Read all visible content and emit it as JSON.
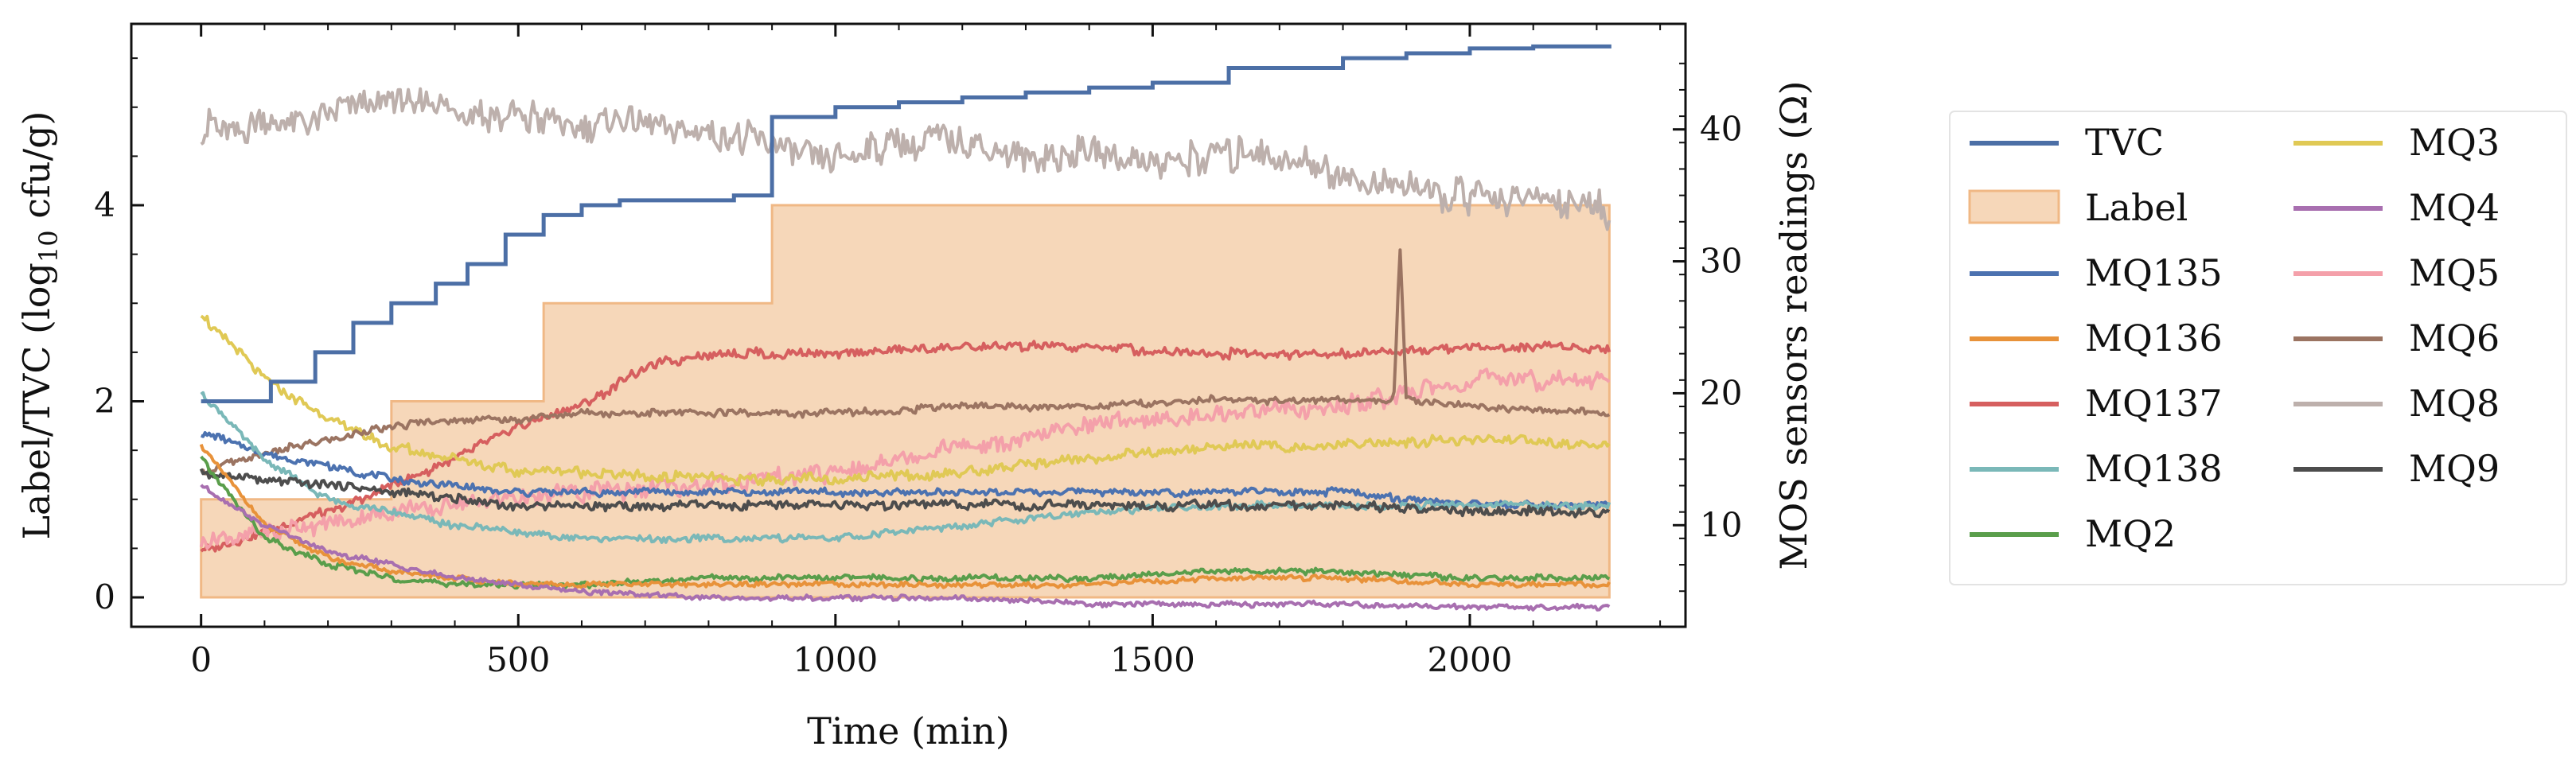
{
  "chart_data": {
    "type": "line",
    "xlabel": "Time (min)",
    "ylabel_left_pre": "Label/TVC (log",
    "ylabel_left_sub": "10",
    "ylabel_left_post": " cfu/g)",
    "ylabel_right": "MOS sensors readings (Ω)",
    "xlim": [
      -110,
      2340
    ],
    "ylim_left": [
      -0.3,
      5.85
    ],
    "ylim_right": [
      2.3,
      48
    ],
    "xticks": [
      0,
      500,
      1000,
      1500,
      2000
    ],
    "yticks_left": [
      0,
      2,
      4
    ],
    "yticks_right": [
      10,
      20,
      30,
      40
    ],
    "legend_position": "outside-right",
    "grid": false,
    "series": [
      {
        "name": "TVC",
        "axis": "left",
        "color": "#4c6fa6",
        "kind": "step",
        "x": [
          0,
          50,
          110,
          180,
          240,
          300,
          370,
          420,
          480,
          540,
          600,
          660,
          840,
          900,
          1000,
          1100,
          1200,
          1300,
          1400,
          1500,
          1620,
          1800,
          1900,
          2000,
          2100,
          2220
        ],
        "y": [
          2.0,
          2.0,
          2.2,
          2.5,
          2.8,
          3.0,
          3.2,
          3.4,
          3.7,
          3.9,
          4.0,
          4.05,
          4.1,
          4.9,
          5.0,
          5.05,
          5.1,
          5.15,
          5.2,
          5.25,
          5.4,
          5.5,
          5.55,
          5.6,
          5.62,
          5.64
        ]
      },
      {
        "name": "Label",
        "axis": "left",
        "color": "#f3c9a2",
        "edge": "#f0b885",
        "kind": "fill-step",
        "x": [
          0,
          300,
          540,
          900,
          1800,
          2220
        ],
        "y": [
          1,
          2,
          3,
          4,
          4,
          4
        ]
      },
      {
        "name": "MQ135",
        "axis": "right",
        "color": "#4c72b0",
        "x": [
          0,
          100,
          200,
          300,
          400,
          500,
          600,
          800,
          1000,
          1200,
          1400,
          1600,
          1800,
          2000,
          2220
        ],
        "y": [
          17,
          15.5,
          14.5,
          13.5,
          13,
          12.5,
          12.5,
          12.5,
          12.5,
          12.5,
          12.5,
          12.5,
          12.5,
          11.5,
          11.5
        ]
      },
      {
        "name": "MQ136",
        "axis": "right",
        "color": "#e8923a",
        "x": [
          0,
          100,
          200,
          300,
          400,
          500,
          600,
          800,
          1000,
          1200,
          1400,
          1600,
          1800,
          2000,
          2220
        ],
        "y": [
          16,
          10,
          7.5,
          6.5,
          6,
          5.5,
          5.5,
          5.5,
          5.5,
          5.5,
          5.5,
          6,
          6,
          5.5,
          5.5
        ]
      },
      {
        "name": "MQ137",
        "axis": "right",
        "color": "#d65f5f",
        "x": [
          0,
          100,
          200,
          300,
          400,
          500,
          600,
          700,
          800,
          1000,
          1200,
          1400,
          1600,
          1800,
          2000,
          2220
        ],
        "y": [
          8,
          9.5,
          11,
          13,
          15,
          17.5,
          19,
          22,
          23,
          23,
          23.5,
          23.5,
          23,
          23,
          23.5,
          23.5
        ]
      },
      {
        "name": "MQ138",
        "axis": "right",
        "color": "#7ab8b8",
        "x": [
          0,
          100,
          200,
          300,
          400,
          500,
          600,
          800,
          1000,
          1200,
          1400,
          1600,
          1800,
          2000,
          2220
        ],
        "y": [
          20,
          15,
          12,
          11,
          10,
          9.5,
          9,
          9,
          9,
          10,
          11,
          11.5,
          11.5,
          11.5,
          11.5
        ]
      },
      {
        "name": "MQ2",
        "axis": "right",
        "color": "#5a9e4b",
        "x": [
          0,
          100,
          200,
          300,
          400,
          500,
          600,
          800,
          1000,
          1200,
          1400,
          1600,
          1800,
          2000,
          2220
        ],
        "y": [
          15,
          9,
          7,
          6,
          5.5,
          5.5,
          5.5,
          6,
          6,
          6,
          6,
          6.5,
          6.5,
          6,
          6
        ]
      },
      {
        "name": "MQ3",
        "axis": "right",
        "color": "#e0c955",
        "x": [
          0,
          100,
          200,
          300,
          400,
          500,
          600,
          800,
          1000,
          1200,
          1400,
          1600,
          1800,
          2000,
          2220
        ],
        "y": [
          26,
          21,
          18,
          16,
          15,
          14,
          14,
          13.5,
          13.5,
          14,
          15,
          16,
          16,
          16.5,
          16
        ]
      },
      {
        "name": "MQ4",
        "axis": "right",
        "color": "#a86fb0",
        "x": [
          0,
          100,
          200,
          300,
          400,
          500,
          600,
          800,
          1000,
          1200,
          1400,
          1600,
          1800,
          2000,
          2220
        ],
        "y": [
          13,
          10,
          8,
          7,
          6,
          5.5,
          5,
          4.5,
          4.5,
          4.5,
          4,
          4,
          4,
          3.8,
          3.8
        ]
      },
      {
        "name": "MQ5",
        "axis": "right",
        "color": "#f4a0aa",
        "x": [
          0,
          100,
          200,
          300,
          400,
          500,
          600,
          800,
          1000,
          1200,
          1400,
          1600,
          1800,
          2000,
          2220
        ],
        "y": [
          8.5,
          9.5,
          10,
          11,
          11.5,
          12,
          12.5,
          13,
          14,
          16,
          17.5,
          18.5,
          19,
          21,
          21
        ]
      },
      {
        "name": "MQ6",
        "axis": "right",
        "color": "#9b7462",
        "x": [
          0,
          100,
          200,
          300,
          400,
          500,
          600,
          800,
          1000,
          1200,
          1400,
          1600,
          1800,
          1880,
          1890,
          1900,
          2000,
          2220
        ],
        "y": [
          14,
          15.5,
          16.5,
          17.5,
          18,
          18,
          18.5,
          18.5,
          18.5,
          19,
          19,
          19.5,
          19.5,
          19.5,
          31,
          19.5,
          19,
          18.5
        ]
      },
      {
        "name": "MQ8",
        "axis": "right",
        "color": "#bdb0ac",
        "x": [
          0,
          100,
          200,
          300,
          400,
          500,
          600,
          700,
          800,
          900,
          1000,
          1100,
          1200,
          1300,
          1400,
          1500,
          1600,
          1700,
          1800,
          1900,
          2000,
          2100,
          2220
        ],
        "y": [
          40,
          40.5,
          41,
          42,
          41.5,
          41,
          40,
          40.5,
          39.5,
          39,
          38,
          39,
          39,
          38,
          38,
          37.5,
          38,
          38,
          36.5,
          35.5,
          35,
          34.5,
          34
        ]
      },
      {
        "name": "MQ9",
        "axis": "right",
        "color": "#4d4d4d",
        "x": [
          0,
          100,
          200,
          300,
          400,
          500,
          600,
          800,
          1000,
          1200,
          1400,
          1600,
          1800,
          2000,
          2220
        ],
        "y": [
          14,
          13.5,
          13,
          12.5,
          12,
          11.5,
          11.5,
          11.5,
          11.5,
          11.5,
          11.5,
          11.5,
          11.5,
          11,
          11
        ]
      }
    ]
  }
}
